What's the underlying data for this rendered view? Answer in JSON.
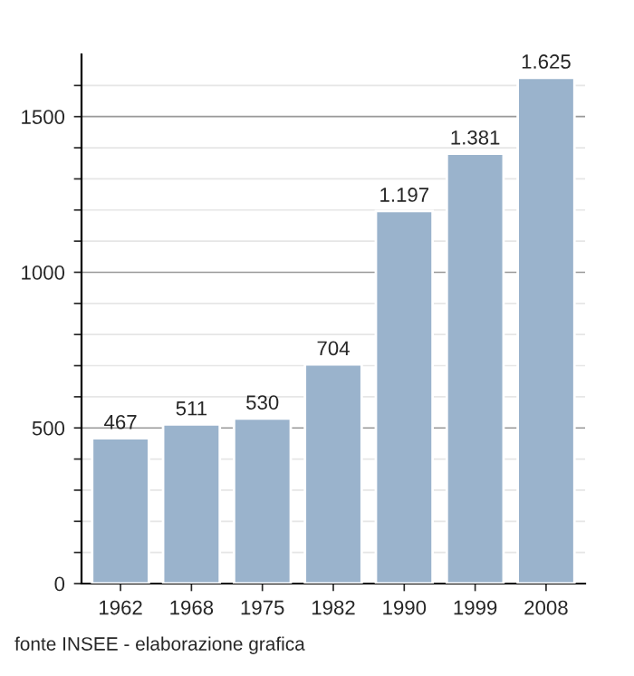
{
  "chart_data": {
    "type": "bar",
    "categories": [
      "1962",
      "1968",
      "1975",
      "1982",
      "1990",
      "1999",
      "2008"
    ],
    "values": [
      467,
      511,
      530,
      704,
      1197,
      1381,
      1625
    ],
    "value_labels": [
      "467",
      "511",
      "530",
      "704",
      "1.197",
      "1.381",
      "1.625"
    ],
    "color": "#9ab3cc",
    "ylim": [
      0,
      1700
    ],
    "yticks": [
      0,
      {
        "value": 100,
        "label": null
      },
      {
        "value": 200,
        "label": null
      },
      {
        "value": 300,
        "label": null
      },
      {
        "value": 400,
        "label": null
      },
      500,
      {
        "value": 600,
        "label": null
      },
      {
        "value": 700,
        "label": null
      },
      {
        "value": 800,
        "label": null
      },
      {
        "value": 900,
        "label": null
      },
      1000,
      {
        "value": 1100,
        "label": null
      },
      {
        "value": 1200,
        "label": null
      },
      {
        "value": 1300,
        "label": null
      },
      {
        "value": 1400,
        "label": null
      },
      1500,
      {
        "value": 1600,
        "label": null
      }
    ],
    "grid": "y",
    "annotations": [
      "fonte INSEE - elaborazione grafica"
    ]
  }
}
